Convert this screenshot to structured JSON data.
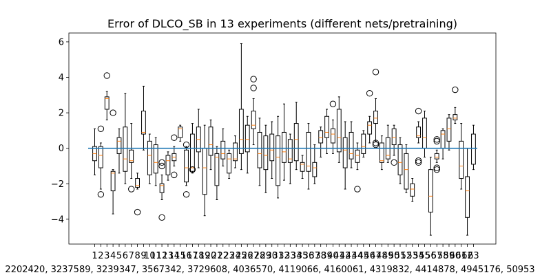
{
  "chart_data": {
    "type": "box",
    "title": "Error of DLCO_SB in 13 experiments (different nets/pretraining)",
    "xlabel": "",
    "ylabel": "",
    "ylim": [
      -5.4,
      6.5
    ],
    "yticks": [
      -4,
      -2,
      0,
      2,
      4,
      6
    ],
    "ytick_labels": [
      "−4",
      "−2",
      "0",
      "2",
      "4",
      "6"
    ],
    "xtick_labels": [
      "1",
      "2",
      "3",
      "4",
      "5",
      "6",
      "7",
      "8",
      "9",
      "10",
      "11",
      "12",
      "13",
      "14",
      "15",
      "16",
      "17",
      "18",
      "19",
      "20",
      "21",
      "22",
      "23",
      "24",
      "25",
      "26",
      "27",
      "28",
      "29",
      "30",
      "31",
      "32",
      "33",
      "34",
      "35",
      "36",
      "37",
      "38",
      "39",
      "40",
      "41",
      "42",
      "43",
      "44",
      "45",
      "46",
      "47",
      "48",
      "49",
      "50",
      "51",
      "52",
      "53",
      "54",
      "55",
      "56",
      "57",
      "58",
      "59",
      "60",
      "61",
      "62",
      "63"
    ],
    "x_caption": "2202420, 3237589, 3239347, 3567342, 3729608, 4036570, 4119066, 4160061, 4319832, 4414878, 4945176, 50953",
    "reference_line": {
      "y": 0,
      "color": "#1f77b4"
    },
    "colors": {
      "box": "#000000",
      "median": "#ff7f0e",
      "flier": "#000000"
    },
    "boxes": [
      {
        "q1": -0.7,
        "med": -0.3,
        "q3": 0.1,
        "wlo": -1.5,
        "whi": 1.1,
        "fliers": []
      },
      {
        "q1": -1.1,
        "med": -0.4,
        "q3": 0.1,
        "wlo": -2.3,
        "whi": 0.3,
        "fliers": [
          1.1,
          -2.6
        ]
      },
      {
        "q1": 2.2,
        "med": 2.8,
        "q3": 2.9,
        "wlo": 1.6,
        "whi": 3.2,
        "fliers": [
          4.1
        ]
      },
      {
        "q1": -2.4,
        "med": -1.4,
        "q3": -1.3,
        "wlo": -3.7,
        "whi": -1.2,
        "fliers": [
          2.0
        ]
      },
      {
        "q1": -0.3,
        "med": 0.4,
        "q3": 0.6,
        "wlo": -1.4,
        "whi": 1.1,
        "fliers": []
      },
      {
        "q1": -1.3,
        "med": -0.6,
        "q3": 1.2,
        "wlo": -2.0,
        "whi": 3.1,
        "fliers": []
      },
      {
        "q1": -0.8,
        "med": -0.7,
        "q3": -0.1,
        "wlo": -1.7,
        "whi": 1.4,
        "fliers": [
          -2.3
        ]
      },
      {
        "q1": -2.2,
        "med": -2.1,
        "q3": -1.7,
        "wlo": -2.3,
        "whi": -1.4,
        "fliers": [
          -3.6
        ]
      },
      {
        "q1": 0.8,
        "med": 0.9,
        "q3": 2.1,
        "wlo": -0.1,
        "whi": 3.5,
        "fliers": []
      },
      {
        "q1": -1.5,
        "med": -0.4,
        "q3": 0.4,
        "wlo": -2.0,
        "whi": 0.8,
        "fliers": []
      },
      {
        "q1": -1.4,
        "med": -0.8,
        "q3": 0.2,
        "wlo": -2.1,
        "whi": 0.6,
        "fliers": []
      },
      {
        "q1": -2.5,
        "med": -2.1,
        "q3": -2.0,
        "wlo": -2.9,
        "whi": -1.5,
        "fliers": [
          -0.8,
          -1.0,
          -3.9
        ]
      },
      {
        "q1": -1.5,
        "med": -0.7,
        "q3": -0.4,
        "wlo": -1.8,
        "whi": -0.2,
        "fliers": []
      },
      {
        "q1": -0.7,
        "med": -0.5,
        "q3": -0.3,
        "wlo": -1.0,
        "whi": 0.1,
        "fliers": [
          0.6,
          -1.5
        ]
      },
      {
        "q1": 0.6,
        "med": 1.1,
        "q3": 1.2,
        "wlo": 0.4,
        "whi": 1.3,
        "fliers": []
      },
      {
        "q1": -1.9,
        "med": -1.1,
        "q3": -0.1,
        "wlo": -2.1,
        "whi": 0.1,
        "fliers": [
          0.2,
          -2.6
        ]
      },
      {
        "q1": -1.3,
        "med": -1.1,
        "q3": 0.8,
        "wlo": -1.4,
        "whi": 1.4,
        "fliers": [
          -1.2
        ]
      },
      {
        "q1": -0.2,
        "med": 0.5,
        "q3": 1.2,
        "wlo": -1.1,
        "whi": 2.2,
        "fliers": []
      },
      {
        "q1": -2.6,
        "med": -1.1,
        "q3": 0.0,
        "wlo": -3.8,
        "whi": 1.3,
        "fliers": []
      },
      {
        "q1": -0.4,
        "med": 0.2,
        "q3": 1.2,
        "wlo": -1.2,
        "whi": 1.6,
        "fliers": []
      },
      {
        "q1": -2.1,
        "med": -0.5,
        "q3": -0.3,
        "wlo": -2.9,
        "whi": 0.1,
        "fliers": []
      },
      {
        "q1": -0.6,
        "med": -0.3,
        "q3": 0.4,
        "wlo": -1.0,
        "whi": 1.1,
        "fliers": []
      },
      {
        "q1": -1.4,
        "med": -0.6,
        "q3": -0.3,
        "wlo": -1.7,
        "whi": -0.1,
        "fliers": []
      },
      {
        "q1": -0.7,
        "med": -0.6,
        "q3": 0.3,
        "wlo": -1.1,
        "whi": 0.7,
        "fliers": []
      },
      {
        "q1": -0.3,
        "med": 0.5,
        "q3": 2.2,
        "wlo": -1.2,
        "whi": 5.9,
        "fliers": []
      },
      {
        "q1": -0.2,
        "med": 0.5,
        "q3": 1.3,
        "wlo": -1.4,
        "whi": 1.8,
        "fliers": []
      },
      {
        "q1": 1.1,
        "med": 1.3,
        "q3": 2.1,
        "wlo": 0.2,
        "whi": 2.8,
        "fliers": [
          3.9,
          3.4
        ]
      },
      {
        "q1": -1.1,
        "med": -0.3,
        "q3": 0.9,
        "wlo": -2.1,
        "whi": 1.7,
        "fliers": []
      },
      {
        "q1": -1.2,
        "med": -0.4,
        "q3": 0.7,
        "wlo": -2.5,
        "whi": 1.3,
        "fliers": []
      },
      {
        "q1": -0.7,
        "med": -0.1,
        "q3": 0.8,
        "wlo": -1.7,
        "whi": 1.5,
        "fliers": []
      },
      {
        "q1": -2.1,
        "med": -0.5,
        "q3": 0.7,
        "wlo": -2.8,
        "whi": 1.8,
        "fliers": []
      },
      {
        "q1": -0.8,
        "med": -0.2,
        "q3": 0.9,
        "wlo": -1.8,
        "whi": 2.5,
        "fliers": []
      },
      {
        "q1": -0.8,
        "med": -0.6,
        "q3": 0.5,
        "wlo": -2.0,
        "whi": 0.8,
        "fliers": []
      },
      {
        "q1": -0.7,
        "med": 0.5,
        "q3": 1.4,
        "wlo": -1.2,
        "whi": 2.6,
        "fliers": []
      },
      {
        "q1": -1.3,
        "med": -0.9,
        "q3": -0.8,
        "wlo": -1.7,
        "whi": -0.4,
        "fliers": []
      },
      {
        "q1": -1.3,
        "med": -1.0,
        "q3": 0.9,
        "wlo": -2.3,
        "whi": 1.4,
        "fliers": []
      },
      {
        "q1": -1.6,
        "med": -1.1,
        "q3": -0.8,
        "wlo": -2.0,
        "whi": 0.2,
        "fliers": []
      },
      {
        "q1": 0.3,
        "med": 0.6,
        "q3": 1.0,
        "wlo": -0.5,
        "whi": 1.2,
        "fliers": []
      },
      {
        "q1": 0.6,
        "med": 0.9,
        "q3": 1.8,
        "wlo": -0.3,
        "whi": 2.2,
        "fliers": []
      },
      {
        "q1": 0.3,
        "med": 0.8,
        "q3": 1.1,
        "wlo": -0.3,
        "whi": 1.6,
        "fliers": [
          2.5
        ]
      },
      {
        "q1": -0.2,
        "med": 0.6,
        "q3": 2.2,
        "wlo": -0.8,
        "whi": 2.9,
        "fliers": []
      },
      {
        "q1": -1.1,
        "med": -0.1,
        "q3": 0.6,
        "wlo": -2.3,
        "whi": 1.5,
        "fliers": []
      },
      {
        "q1": -0.6,
        "med": -0.3,
        "q3": 0.9,
        "wlo": -1.1,
        "whi": 1.5,
        "fliers": []
      },
      {
        "q1": -0.8,
        "med": -0.4,
        "q3": -0.1,
        "wlo": -1.2,
        "whi": 0.3,
        "fliers": [
          -2.3
        ]
      },
      {
        "q1": -0.3,
        "med": 0.1,
        "q3": 0.8,
        "wlo": -0.5,
        "whi": 1.0,
        "fliers": []
      },
      {
        "q1": 0.8,
        "med": 1.3,
        "q3": 1.5,
        "wlo": 0.3,
        "whi": 1.8,
        "fliers": [
          3.1
        ]
      },
      {
        "q1": 1.4,
        "med": 1.7,
        "q3": 2.1,
        "wlo": 0.4,
        "whi": 2.8,
        "fliers": [
          4.3,
          0.3,
          0.2
        ]
      },
      {
        "q1": -0.8,
        "med": -0.7,
        "q3": 0.3,
        "wlo": -1.2,
        "whi": 0.7,
        "fliers": []
      },
      {
        "q1": -0.6,
        "med": -0.4,
        "q3": 0.6,
        "wlo": -0.8,
        "whi": 1.3,
        "fliers": []
      },
      {
        "q1": 0.2,
        "med": 0.6,
        "q3": 1.1,
        "wlo": -0.4,
        "whi": 1.3,
        "fliers": [
          -0.8
        ]
      },
      {
        "q1": -1.5,
        "med": -0.8,
        "q3": 0.2,
        "wlo": -2.0,
        "whi": 0.6,
        "fliers": []
      },
      {
        "q1": -2.3,
        "med": -1.2,
        "q3": -0.3,
        "wlo": -2.5,
        "whi": 0.2,
        "fliers": []
      },
      {
        "q1": -2.7,
        "med": -2.3,
        "q3": -2.0,
        "wlo": -3.0,
        "whi": -1.7,
        "fliers": []
      },
      {
        "q1": 0.6,
        "med": 0.7,
        "q3": 1.2,
        "wlo": 0.3,
        "whi": 1.5,
        "fliers": [
          2.1,
          -0.7,
          -0.8
        ]
      },
      {
        "q1": 0.0,
        "med": 0.6,
        "q3": 1.7,
        "wlo": -0.5,
        "whi": 2.1,
        "fliers": []
      },
      {
        "q1": -3.6,
        "med": -2.7,
        "q3": -1.2,
        "wlo": -4.9,
        "whi": -0.5,
        "fliers": []
      },
      {
        "q1": -0.6,
        "med": -0.5,
        "q3": -0.3,
        "wlo": -0.8,
        "whi": -0.1,
        "fliers": [
          0.5,
          0.4,
          -1.1,
          -1.2
        ]
      },
      {
        "q1": 0.0,
        "med": 0.8,
        "q3": 1.0,
        "wlo": -0.6,
        "whi": 1.1,
        "fliers": []
      },
      {
        "q1": 0.4,
        "med": 1.1,
        "q3": 1.7,
        "wlo": -0.1,
        "whi": 1.9,
        "fliers": []
      },
      {
        "q1": 1.6,
        "med": 1.7,
        "q3": 1.9,
        "wlo": 1.4,
        "whi": 2.3,
        "fliers": [
          3.3
        ]
      },
      {
        "q1": -1.7,
        "med": -1.0,
        "q3": 0.4,
        "wlo": -2.3,
        "whi": 1.4,
        "fliers": []
      },
      {
        "q1": -3.9,
        "med": -2.4,
        "q3": -1.6,
        "wlo": -4.9,
        "whi": 0.0,
        "fliers": []
      },
      {
        "q1": -0.9,
        "med": 0.0,
        "q3": 0.8,
        "wlo": -1.2,
        "whi": 1.3,
        "fliers": []
      }
    ]
  }
}
